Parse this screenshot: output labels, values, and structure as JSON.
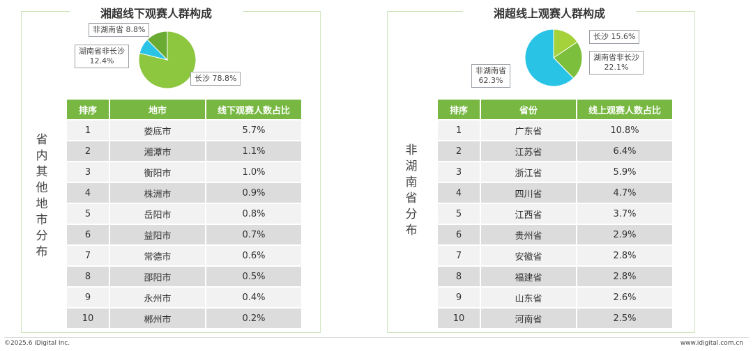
{
  "left": {
    "title": "湘超线下观赛人群构成",
    "side_label": "省内其他地市分布",
    "chart_data": {
      "type": "pie",
      "title": "湘超线下观赛人群构成",
      "slices": [
        {
          "label": "长沙",
          "value": 78.8,
          "display": "长沙 78.8%",
          "color": "#8dc63f"
        },
        {
          "label": "非湖南省",
          "value": 8.8,
          "display": "非湖南省 8.8%",
          "color": "#29c3e6"
        },
        {
          "label": "湖南省非长沙",
          "value": 12.4,
          "display": "湖南省非长沙\n12.4%",
          "color": "#6aab34"
        }
      ]
    },
    "callouts": {
      "changsha": "长沙 78.8%",
      "non_hunan": "非湖南省 8.8%",
      "hunan_other_name": "湖南省非长沙",
      "hunan_other_value": "12.4%"
    },
    "table": {
      "headers": [
        "排序",
        "地市",
        "线下观赛人数占比"
      ],
      "rows": [
        [
          "1",
          "娄底市",
          "5.7%"
        ],
        [
          "2",
          "湘潭市",
          "1.1%"
        ],
        [
          "3",
          "衡阳市",
          "1.0%"
        ],
        [
          "4",
          "株洲市",
          "0.9%"
        ],
        [
          "5",
          "岳阳市",
          "0.8%"
        ],
        [
          "6",
          "益阳市",
          "0.7%"
        ],
        [
          "7",
          "常德市",
          "0.6%"
        ],
        [
          "8",
          "邵阳市",
          "0.5%"
        ],
        [
          "9",
          "永州市",
          "0.4%"
        ],
        [
          "10",
          "郴州市",
          "0.2%"
        ]
      ]
    }
  },
  "right": {
    "title": "湘超线上观赛人群构成",
    "side_label": "非湖南省分布",
    "chart_data": {
      "type": "pie",
      "title": "湘超线上观赛人群构成",
      "slices": [
        {
          "label": "长沙",
          "value": 15.6,
          "display": "长沙 15.6%",
          "color": "#a5d13b"
        },
        {
          "label": "湖南省非长沙",
          "value": 22.1,
          "display": "湖南省非长沙\n22.1%",
          "color": "#7bbf3c"
        },
        {
          "label": "非湖南省",
          "value": 62.3,
          "display": "非湖南省\n62.3%",
          "color": "#29c3e6"
        }
      ]
    },
    "callouts": {
      "changsha": "长沙 15.6%",
      "hunan_other_name": "湖南省非长沙",
      "hunan_other_value": "22.1%",
      "non_hunan_name": "非湖南省",
      "non_hunan_value": "62.3%"
    },
    "table": {
      "headers": [
        "排序",
        "省份",
        "线上观赛人数占比"
      ],
      "rows": [
        [
          "1",
          "广东省",
          "10.8%"
        ],
        [
          "2",
          "江苏省",
          "6.4%"
        ],
        [
          "3",
          "浙江省",
          "5.9%"
        ],
        [
          "4",
          "四川省",
          "4.7%"
        ],
        [
          "5",
          "江西省",
          "3.7%"
        ],
        [
          "6",
          "贵州省",
          "2.9%"
        ],
        [
          "7",
          "安徽省",
          "2.8%"
        ],
        [
          "8",
          "福建省",
          "2.8%"
        ],
        [
          "9",
          "山东省",
          "2.6%"
        ],
        [
          "10",
          "河南省",
          "2.5%"
        ]
      ]
    }
  },
  "footer": {
    "copyright": "©2025.6 iDigital Inc.",
    "website": "www.idigital.com.cn"
  }
}
